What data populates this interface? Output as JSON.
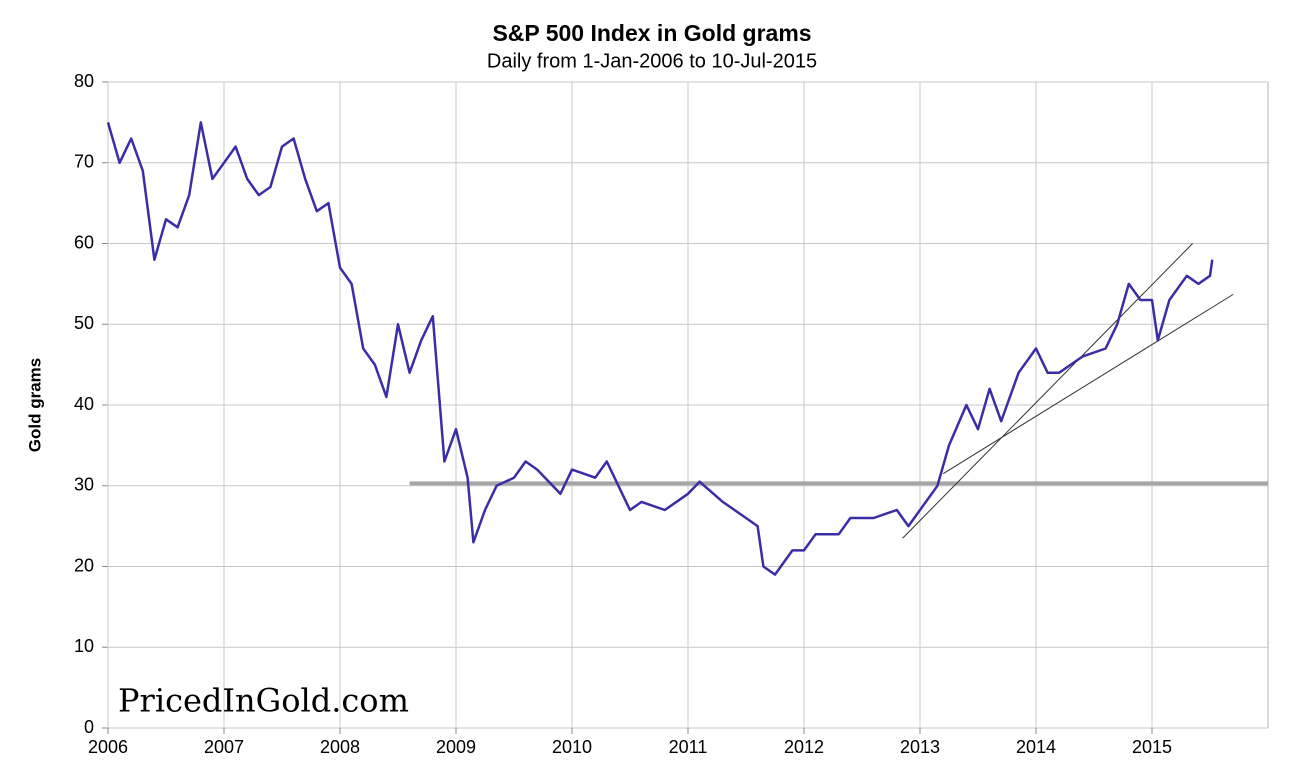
{
  "chart_data": {
    "type": "line",
    "title": "S&P 500 Index in Gold grams",
    "subtitle": "Daily from 1-Jan-2006 to 10-Jul-2015",
    "y_label": "Gold grams",
    "watermark": "PricedInGold.com",
    "xlim": [
      2006,
      2016
    ],
    "xticks": [
      2006,
      2007,
      2008,
      2009,
      2010,
      2011,
      2012,
      2013,
      2014,
      2015
    ],
    "ylim": [
      0,
      80
    ],
    "yticks": [
      0,
      10,
      20,
      30,
      40,
      50,
      60,
      70,
      80
    ],
    "grid": true,
    "x": [
      2006.0,
      2006.1,
      2006.2,
      2006.3,
      2006.4,
      2006.5,
      2006.6,
      2006.7,
      2006.8,
      2006.9,
      2007.0,
      2007.1,
      2007.2,
      2007.3,
      2007.4,
      2007.5,
      2007.6,
      2007.7,
      2007.8,
      2007.9,
      2008.0,
      2008.1,
      2008.2,
      2008.3,
      2008.4,
      2008.5,
      2008.6,
      2008.7,
      2008.8,
      2008.9,
      2009.0,
      2009.1,
      2009.15,
      2009.25,
      2009.35,
      2009.5,
      2009.6,
      2009.7,
      2009.9,
      2010.0,
      2010.2,
      2010.3,
      2010.4,
      2010.5,
      2010.6,
      2010.8,
      2011.0,
      2011.1,
      2011.3,
      2011.5,
      2011.6,
      2011.65,
      2011.75,
      2011.9,
      2012.0,
      2012.1,
      2012.3,
      2012.4,
      2012.6,
      2012.8,
      2012.9,
      2013.0,
      2013.15,
      2013.25,
      2013.4,
      2013.5,
      2013.6,
      2013.7,
      2013.85,
      2014.0,
      2014.1,
      2014.2,
      2014.3,
      2014.4,
      2014.6,
      2014.7,
      2014.8,
      2014.9,
      2015.0,
      2015.05,
      2015.15,
      2015.3,
      2015.4,
      2015.5,
      2015.52
    ],
    "series": [
      {
        "name": "S&P 500 in gold grams",
        "color": "#3a2ea6",
        "values": [
          75,
          70,
          73,
          69,
          58,
          63,
          62,
          66,
          75,
          68,
          70,
          72,
          68,
          66,
          67,
          72,
          73,
          68,
          64,
          65,
          57,
          55,
          47,
          45,
          41,
          50,
          44,
          48,
          51,
          33,
          37,
          31,
          23,
          27,
          30,
          31,
          33,
          32,
          29,
          32,
          31,
          33,
          30,
          27,
          28,
          27,
          29,
          30.5,
          28,
          26,
          25,
          20,
          19,
          22,
          22,
          24,
          24,
          26,
          26,
          27,
          25,
          27,
          30,
          35,
          40,
          37,
          42,
          38,
          44,
          47,
          44,
          44,
          45,
          46,
          47,
          50,
          55,
          53,
          53,
          48,
          53,
          56,
          55,
          56,
          58
        ]
      }
    ],
    "reference_lines": [
      {
        "x": [
          2008.6,
          2016
        ],
        "y": [
          30.3,
          30.3
        ],
        "color": "#a6a6a6"
      },
      {
        "x": [
          2012.85,
          2015.35
        ],
        "y": [
          23.5,
          60
        ],
        "color": "#333333"
      },
      {
        "x": [
          2013.2,
          2015.7
        ],
        "y": [
          31.5,
          53.7
        ],
        "color": "#333333"
      }
    ]
  }
}
